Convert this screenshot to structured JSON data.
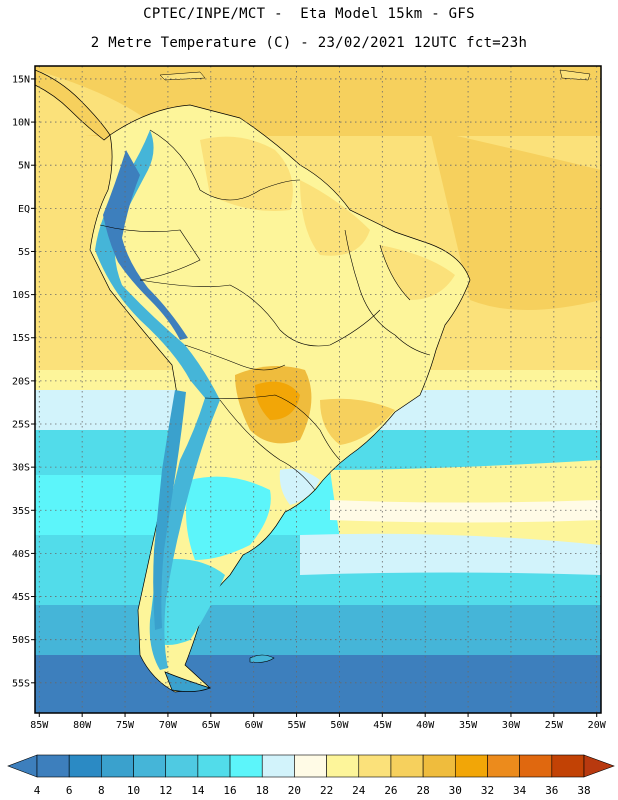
{
  "header": {
    "line1": "CPTEC/INPE/MCT -  Eta Model 15km - GFS",
    "line2": "2 Metre Temperature (C) - 23/02/2021 12UTC fct=23h"
  },
  "map": {
    "lon_range": [
      -85.5,
      -19.5
    ],
    "lat_range": [
      -58.5,
      16.5
    ],
    "lat_ticks": [
      {
        "lat": 15,
        "label": "15N"
      },
      {
        "lat": 10,
        "label": "10N"
      },
      {
        "lat": 5,
        "label": "5N"
      },
      {
        "lat": 0,
        "label": "EQ"
      },
      {
        "lat": -5,
        "label": "5S"
      },
      {
        "lat": -10,
        "label": "10S"
      },
      {
        "lat": -15,
        "label": "15S"
      },
      {
        "lat": -20,
        "label": "20S"
      },
      {
        "lat": -25,
        "label": "25S"
      },
      {
        "lat": -30,
        "label": "30S"
      },
      {
        "lat": -35,
        "label": "35S"
      },
      {
        "lat": -40,
        "label": "40S"
      },
      {
        "lat": -45,
        "label": "45S"
      },
      {
        "lat": -50,
        "label": "50S"
      },
      {
        "lat": -55,
        "label": "55S"
      }
    ],
    "lon_ticks": [
      {
        "lon": -85,
        "label": "85W"
      },
      {
        "lon": -80,
        "label": "80W"
      },
      {
        "lon": -75,
        "label": "75W"
      },
      {
        "lon": -70,
        "label": "70W"
      },
      {
        "lon": -65,
        "label": "65W"
      },
      {
        "lon": -60,
        "label": "60W"
      },
      {
        "lon": -55,
        "label": "55W"
      },
      {
        "lon": -50,
        "label": "50W"
      },
      {
        "lon": -45,
        "label": "45W"
      },
      {
        "lon": -40,
        "label": "40W"
      },
      {
        "lon": -35,
        "label": "35W"
      },
      {
        "lon": -30,
        "label": "30W"
      },
      {
        "lon": -25,
        "label": "25W"
      },
      {
        "lon": -20,
        "label": "20W"
      }
    ],
    "grid": true,
    "grid_style": "dotted"
  },
  "colorbar": {
    "levels": [
      "4",
      "6",
      "8",
      "10",
      "12",
      "14",
      "16",
      "18",
      "20",
      "22",
      "24",
      "26",
      "28",
      "30",
      "32",
      "34",
      "36",
      "38"
    ],
    "colors": [
      "#3d7fbd",
      "#2b8ac4",
      "#3aa1cd",
      "#45b5d8",
      "#4fcae2",
      "#52dcea",
      "#5cf5fa",
      "#d2f3fb",
      "#fffbe6",
      "#fdf59a",
      "#fbe17a",
      "#f6d05d",
      "#efbc3d",
      "#f2a607",
      "#ec8b1c",
      "#e0680f",
      "#c24205"
    ],
    "low_arrow_color": "#3d7fbd",
    "high_arrow_color": "#b8390f"
  }
}
